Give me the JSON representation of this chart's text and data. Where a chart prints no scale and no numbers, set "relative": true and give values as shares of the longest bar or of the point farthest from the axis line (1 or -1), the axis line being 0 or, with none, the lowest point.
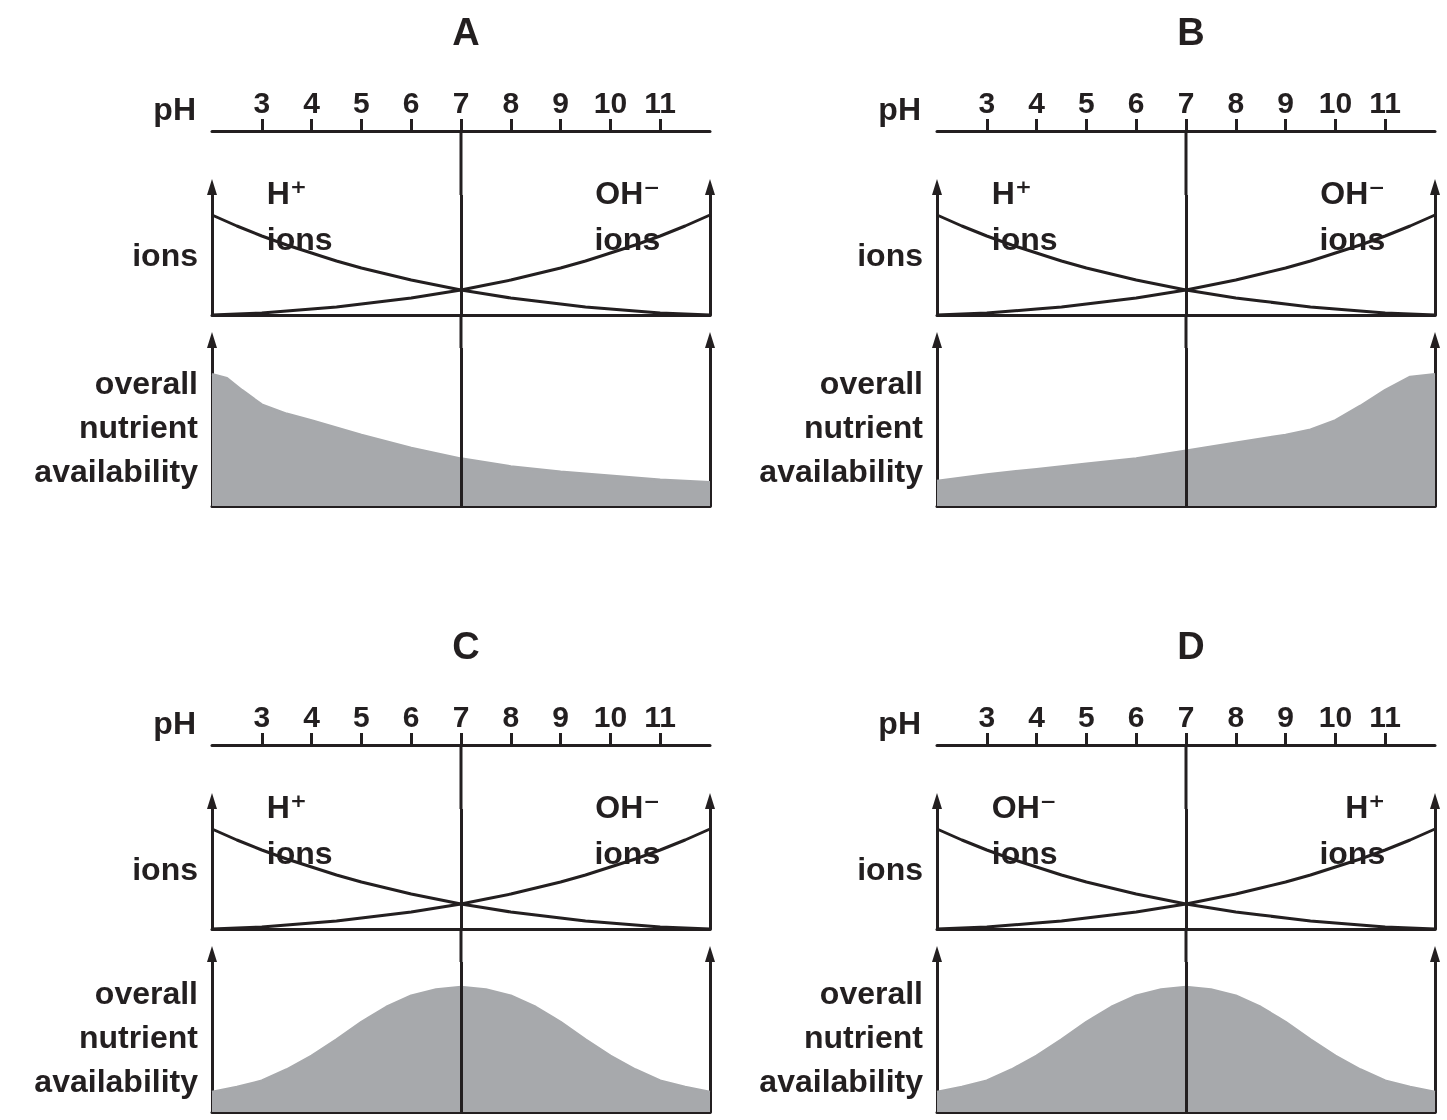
{
  "chart_data": [
    {
      "type": "line",
      "title": "A",
      "xlabel": "pH",
      "ylabel": "ions",
      "relative": true,
      "marker": "none",
      "tick_labels": "x",
      "xlim": [
        2,
        12
      ],
      "xticks": [
        3,
        4,
        5,
        6,
        7,
        8,
        9,
        10,
        11
      ],
      "ref_lines": [
        {
          "axis": "x",
          "value": 7
        }
      ],
      "x": [
        2,
        2.5,
        3,
        3.5,
        4,
        4.5,
        5,
        5.5,
        6,
        6.5,
        7,
        7.5,
        8,
        8.5,
        9,
        9.5,
        10,
        10.5,
        11,
        11.5,
        12
      ],
      "series": [
        {
          "name": "H⁺ ions",
          "color": "#231f20",
          "values": [
            1,
            0.89,
            0.79,
            0.7,
            0.62,
            0.54,
            0.47,
            0.41,
            0.35,
            0.3,
            0.25,
            0.21,
            0.17,
            0.14,
            0.11,
            0.08,
            0.06,
            0.04,
            0.02,
            0.01,
            0
          ]
        },
        {
          "name": "OH⁻ ions",
          "color": "#231f20",
          "values": [
            0,
            0.01,
            0.02,
            0.04,
            0.06,
            0.08,
            0.11,
            0.14,
            0.17,
            0.21,
            0.25,
            0.3,
            0.35,
            0.41,
            0.47,
            0.54,
            0.62,
            0.7,
            0.79,
            0.89,
            1
          ]
        }
      ]
    },
    {
      "type": "area",
      "ylabel": "overall nutrient availability",
      "relative": true,
      "tick_labels": false,
      "xlim": [
        2,
        12
      ],
      "ref_lines": [
        {
          "axis": "x",
          "value": 7
        }
      ],
      "x": [
        2,
        2.3,
        2.6,
        3,
        3.5,
        4,
        5,
        6,
        7,
        8,
        9,
        10,
        11,
        12
      ],
      "series": [
        {
          "color": "#a7a9ac",
          "values": [
            1,
            0.97,
            0.88,
            0.77,
            0.7,
            0.65,
            0.54,
            0.44,
            0.36,
            0.3,
            0.26,
            0.23,
            0.2,
            0.18
          ]
        }
      ]
    },
    {
      "type": "line",
      "title": "B",
      "xlabel": "pH",
      "ylabel": "ions",
      "relative": true,
      "marker": "none",
      "tick_labels": "x",
      "xlim": [
        2,
        12
      ],
      "xticks": [
        3,
        4,
        5,
        6,
        7,
        8,
        9,
        10,
        11
      ],
      "ref_lines": [
        {
          "axis": "x",
          "value": 7
        }
      ],
      "x": [
        2,
        2.5,
        3,
        3.5,
        4,
        4.5,
        5,
        5.5,
        6,
        6.5,
        7,
        7.5,
        8,
        8.5,
        9,
        9.5,
        10,
        10.5,
        11,
        11.5,
        12
      ],
      "series": [
        {
          "name": "H⁺ ions",
          "color": "#231f20",
          "values": [
            1,
            0.89,
            0.79,
            0.7,
            0.62,
            0.54,
            0.47,
            0.41,
            0.35,
            0.3,
            0.25,
            0.21,
            0.17,
            0.14,
            0.11,
            0.08,
            0.06,
            0.04,
            0.02,
            0.01,
            0
          ]
        },
        {
          "name": "OH⁻ ions",
          "color": "#231f20",
          "values": [
            0,
            0.01,
            0.02,
            0.04,
            0.06,
            0.08,
            0.11,
            0.14,
            0.17,
            0.21,
            0.25,
            0.3,
            0.35,
            0.41,
            0.47,
            0.54,
            0.62,
            0.7,
            0.79,
            0.89,
            1
          ]
        }
      ]
    },
    {
      "type": "area",
      "ylabel": "overall nutrient availability",
      "relative": true,
      "tick_labels": false,
      "xlim": [
        2,
        12
      ],
      "ref_lines": [
        {
          "axis": "x",
          "value": 7
        }
      ],
      "x": [
        2,
        3,
        4,
        5,
        6,
        7,
        8,
        9,
        9.5,
        10,
        10.5,
        11,
        11.5,
        12
      ],
      "series": [
        {
          "color": "#a7a9ac",
          "values": [
            0.19,
            0.24,
            0.28,
            0.32,
            0.36,
            0.42,
            0.48,
            0.54,
            0.58,
            0.65,
            0.76,
            0.88,
            0.98,
            1
          ]
        }
      ]
    },
    {
      "type": "line",
      "title": "C",
      "xlabel": "pH",
      "ylabel": "ions",
      "relative": true,
      "marker": "none",
      "tick_labels": "x",
      "xlim": [
        2,
        12
      ],
      "xticks": [
        3,
        4,
        5,
        6,
        7,
        8,
        9,
        10,
        11
      ],
      "ref_lines": [
        {
          "axis": "x",
          "value": 7
        }
      ],
      "x": [
        2,
        2.5,
        3,
        3.5,
        4,
        4.5,
        5,
        5.5,
        6,
        6.5,
        7,
        7.5,
        8,
        8.5,
        9,
        9.5,
        10,
        10.5,
        11,
        11.5,
        12
      ],
      "series": [
        {
          "name": "H⁺ ions",
          "color": "#231f20",
          "values": [
            1,
            0.89,
            0.79,
            0.7,
            0.62,
            0.54,
            0.47,
            0.41,
            0.35,
            0.3,
            0.25,
            0.21,
            0.17,
            0.14,
            0.11,
            0.08,
            0.06,
            0.04,
            0.02,
            0.01,
            0
          ]
        },
        {
          "name": "OH⁻ ions",
          "color": "#231f20",
          "values": [
            0,
            0.01,
            0.02,
            0.04,
            0.06,
            0.08,
            0.11,
            0.14,
            0.17,
            0.21,
            0.25,
            0.3,
            0.35,
            0.41,
            0.47,
            0.54,
            0.62,
            0.7,
            0.79,
            0.89,
            1
          ]
        }
      ]
    },
    {
      "type": "area",
      "ylabel": "overall nutrient availability",
      "relative": true,
      "tick_labels": false,
      "xlim": [
        2,
        12
      ],
      "ref_lines": [
        {
          "axis": "x",
          "value": 7
        }
      ],
      "x": [
        2,
        2.5,
        3,
        3.5,
        4,
        4.5,
        5,
        5.5,
        6,
        6.5,
        7,
        7.5,
        8,
        8.5,
        9,
        9.5,
        10,
        10.5,
        11,
        11.5,
        12
      ],
      "series": [
        {
          "color": "#a7a9ac",
          "values": [
            0.16,
            0.2,
            0.25,
            0.34,
            0.45,
            0.58,
            0.72,
            0.84,
            0.93,
            0.98,
            1,
            0.98,
            0.93,
            0.84,
            0.72,
            0.58,
            0.45,
            0.34,
            0.25,
            0.2,
            0.16
          ]
        }
      ]
    },
    {
      "type": "line",
      "title": "D",
      "xlabel": "pH",
      "ylabel": "ions",
      "relative": true,
      "marker": "none",
      "tick_labels": "x",
      "xlim": [
        2,
        12
      ],
      "xticks": [
        3,
        4,
        5,
        6,
        7,
        8,
        9,
        10,
        11
      ],
      "ref_lines": [
        {
          "axis": "x",
          "value": 7
        }
      ],
      "x": [
        2,
        2.5,
        3,
        3.5,
        4,
        4.5,
        5,
        5.5,
        6,
        6.5,
        7,
        7.5,
        8,
        8.5,
        9,
        9.5,
        10,
        10.5,
        11,
        11.5,
        12
      ],
      "series": [
        {
          "name": "OH⁻ ions",
          "color": "#231f20",
          "values": [
            1,
            0.89,
            0.79,
            0.7,
            0.62,
            0.54,
            0.47,
            0.41,
            0.35,
            0.3,
            0.25,
            0.21,
            0.17,
            0.14,
            0.11,
            0.08,
            0.06,
            0.04,
            0.02,
            0.01,
            0
          ]
        },
        {
          "name": "H⁺ ions",
          "color": "#231f20",
          "values": [
            0,
            0.01,
            0.02,
            0.04,
            0.06,
            0.08,
            0.11,
            0.14,
            0.17,
            0.21,
            0.25,
            0.3,
            0.35,
            0.41,
            0.47,
            0.54,
            0.62,
            0.7,
            0.79,
            0.89,
            1
          ]
        }
      ]
    },
    {
      "type": "area",
      "ylabel": "overall nutrient availability",
      "relative": true,
      "tick_labels": false,
      "xlim": [
        2,
        12
      ],
      "ref_lines": [
        {
          "axis": "x",
          "value": 7
        }
      ],
      "x": [
        2,
        2.5,
        3,
        3.5,
        4,
        4.5,
        5,
        5.5,
        6,
        6.5,
        7,
        7.5,
        8,
        8.5,
        9,
        9.5,
        10,
        10.5,
        11,
        11.5,
        12
      ],
      "series": [
        {
          "color": "#a7a9ac",
          "values": [
            0.16,
            0.2,
            0.25,
            0.34,
            0.45,
            0.58,
            0.72,
            0.84,
            0.93,
            0.98,
            1,
            0.98,
            0.93,
            0.84,
            0.72,
            0.58,
            0.45,
            0.34,
            0.25,
            0.2,
            0.16
          ]
        }
      ]
    }
  ]
}
